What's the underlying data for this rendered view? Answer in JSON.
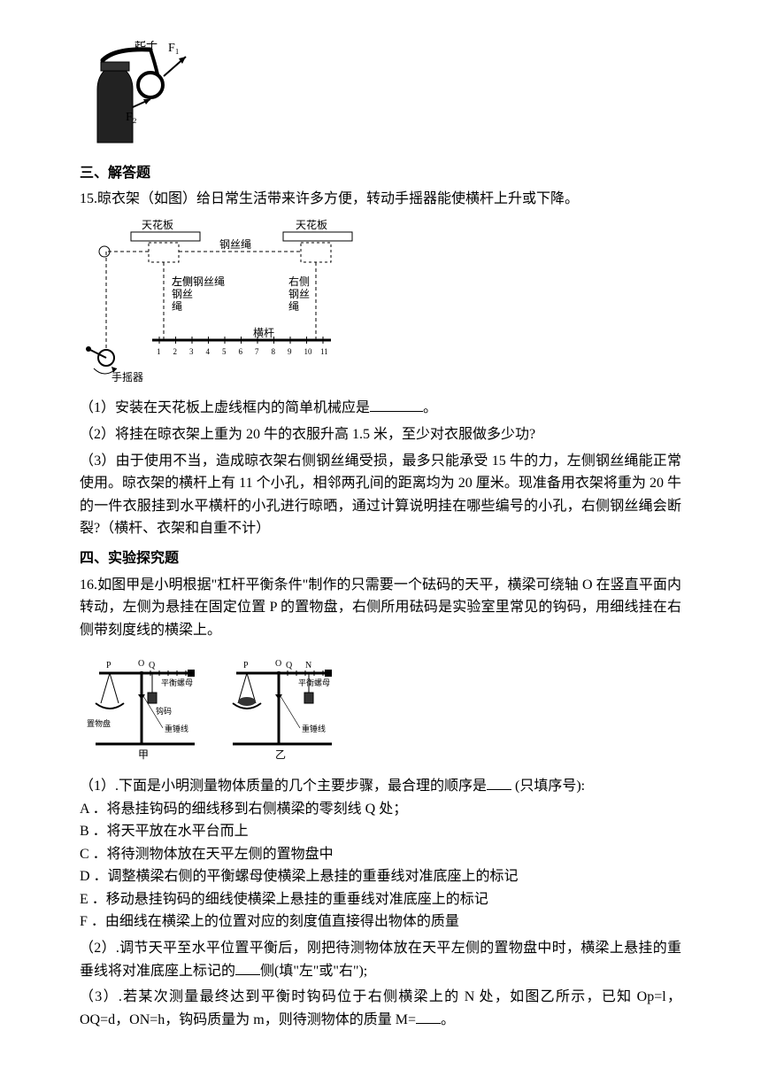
{
  "bottle_fig": {
    "label_qizi": "起子",
    "label_F1": "F₁",
    "label_F2": "F₂",
    "colors": {
      "stroke": "#000000",
      "fill_dark": "#222222",
      "bg": "#ffffff"
    }
  },
  "sec3": {
    "heading": "三、解答题",
    "q15_intro": "15.晾衣架（如图）给日常生活带来许多方便，转动手摇器能使横杆上升或下降。",
    "fig": {
      "ceiling_left": "天花板",
      "ceiling_right": "天花板",
      "wire_rope_top": "钢丝绳",
      "left_rope": "左侧钢丝绳",
      "right_rope": "右侧钢丝绳",
      "bar_label": "横杆",
      "crank_label": "手摇器",
      "numbers": [
        "1",
        "2",
        "3",
        "4",
        "5",
        "6",
        "7",
        "8",
        "9",
        "10",
        "11"
      ],
      "colors": {
        "stroke": "#000000",
        "bg": "#ffffff",
        "text": "#000000"
      }
    },
    "q15_p1_a": "（1）安装在天花板上虚线框内的简单机械应是",
    "q15_p1_b": "。",
    "q15_p2": "（2）将挂在晾衣架上重为 20 牛的衣服升高 1.5 米，至少对衣服做多少功?",
    "q15_p3": "（3）由于使用不当，造成晾衣架右侧钢丝绳受损，最多只能承受 15 牛的力，左侧钢丝绳能正常使用。晾衣架的横杆上有 11 个小孔，相邻两孔间的距离均为 20 厘米。现准备用衣架将重为 20 牛的一件衣服挂到水平横杆的小孔进行晾晒，通过计算说明挂在哪些编号的小孔，右侧钢丝绳会断裂?（横杆、衣架和自重不计）"
  },
  "sec4": {
    "heading": "四、实验探究题",
    "q16_intro": "16.如图甲是小明根据\"杠杆平衡条件\"制作的只需要一个砝码的天平，横梁可绕轴 O 在竖直平面内转动，左侧为悬挂在固定位置 P 的置物盘，右侧所用砝码是实验室里常见的钩码，用细线挂在右侧带刻度线的横梁上。",
    "fig16": {
      "labels": {
        "P": "P",
        "O": "O",
        "Q": "Q",
        "N": "N",
        "nut": "平衡螺母",
        "hook": "钩码",
        "plumb": "重锤线",
        "pan": "置物盘",
        "jia": "甲",
        "yi": "乙"
      },
      "colors": {
        "stroke": "#000000",
        "bg": "#ffffff"
      }
    },
    "q16_p1_a": "（1）.下面是小明测量物体质量的几个主要步骤，最合理的顺序是",
    "q16_p1_b": " (只填序号):",
    "optA": "A ．将悬挂钩码的细线移到右侧横梁的零刻线 Q 处；",
    "optB": "B ．将天平放在水平台而上",
    "optC": "C ．将待测物体放在天平左侧的置物盘中",
    "optD": "D ．调整横梁右侧的平衡螺母使横梁上悬挂的重垂线对准底座上的标记",
    "optE": "E ．移动悬挂钩码的细线使横梁上悬挂的重垂线对准底座上的标记",
    "optF": "F ．由细线在横梁上的位置对应的刻度值直接得出物体的质量",
    "q16_p2_a": "（2）.调节天平至水平位置平衡后，刚把待测物体放在天平左侧的置物盘中时，横梁上悬挂的重垂线将对准底座上标记的",
    "q16_p2_b": "侧(填\"左\"或\"右\");",
    "q16_p3_a": "（3）.若某次测量最终达到平衡时钩码位于右侧横梁上的 N 处，如图乙所示，已知 Op=l，OQ=d，ON=h，钩码质量为 m，则待测物体的质量 M=",
    "q16_p3_b": "。"
  }
}
